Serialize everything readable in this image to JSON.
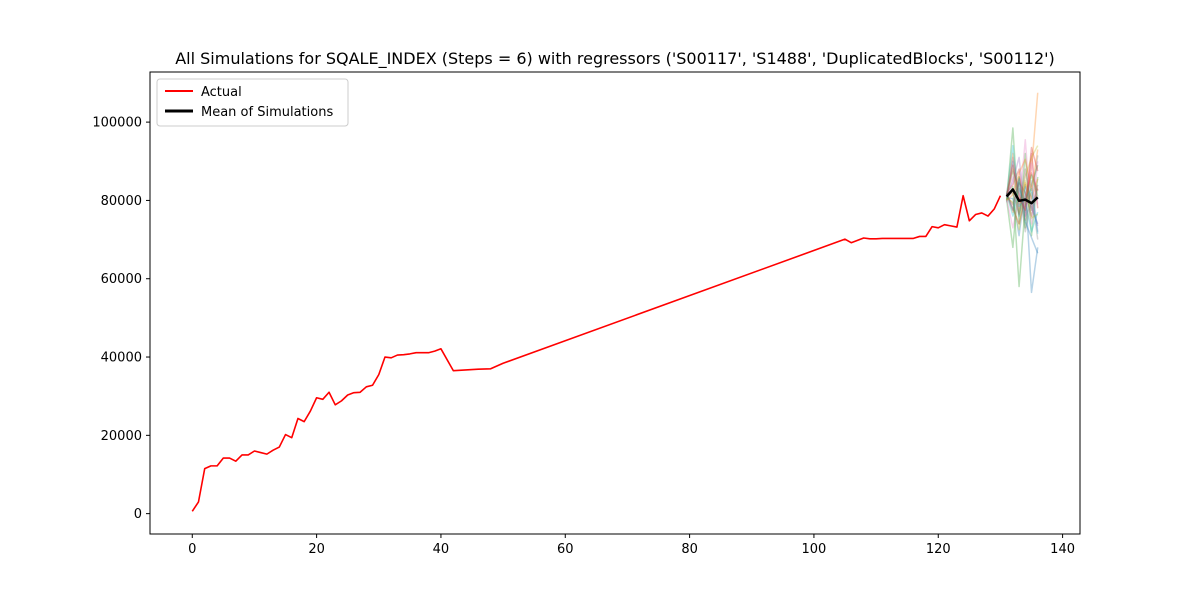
{
  "chart_data": {
    "type": "line",
    "title": "All Simulations for SQALE_INDEX (Steps = 6) with regressors ('S00117', 'S1488', 'DuplicatedBlocks', 'S00112')",
    "xlabel": "",
    "ylabel": "",
    "xlim": [
      -6.8,
      142.8
    ],
    "ylim": [
      -5200,
      112800
    ],
    "xticks": [
      0,
      20,
      40,
      60,
      80,
      100,
      120,
      140
    ],
    "yticks": [
      0,
      20000,
      40000,
      60000,
      80000,
      100000
    ],
    "legend_position": "top-left",
    "grid": false,
    "series": [
      {
        "name": "Actual",
        "color": "#ff0000",
        "x": [
          0,
          1,
          2,
          3,
          4,
          5,
          6,
          7,
          8,
          9,
          10,
          11,
          12,
          13,
          14,
          15,
          16,
          17,
          18,
          19,
          20,
          21,
          22,
          23,
          24,
          25,
          26,
          27,
          28,
          29,
          30,
          31,
          32,
          33,
          34,
          35,
          36,
          37,
          38,
          39,
          40,
          42,
          44,
          46,
          48,
          50,
          105,
          106,
          107,
          108,
          109,
          110,
          111,
          112,
          113,
          114,
          115,
          116,
          117,
          118,
          119,
          120,
          121,
          122,
          123,
          124,
          125,
          126,
          127,
          128,
          129,
          130
        ],
        "y": [
          600,
          3000,
          11500,
          12200,
          12200,
          14200,
          14200,
          13400,
          15000,
          15000,
          16000,
          15600,
          15200,
          16200,
          17000,
          20200,
          19400,
          24300,
          23500,
          26200,
          29600,
          29200,
          31000,
          27800,
          28800,
          30300,
          30900,
          31000,
          32400,
          32800,
          35500,
          40000,
          39800,
          40500,
          40600,
          40800,
          41100,
          41100,
          41100,
          41500,
          42100,
          36500,
          36700,
          36900,
          37000,
          38400,
          70100,
          69200,
          69800,
          70400,
          70200,
          70200,
          70300,
          70300,
          70300,
          70300,
          70300,
          70300,
          70800,
          70800,
          73300,
          73000,
          73800,
          73500,
          73200,
          81200,
          74800,
          76400,
          76800,
          76000,
          77800,
          81200
        ]
      },
      {
        "name": "Mean of Simulations",
        "color": "#000000",
        "x": [
          131,
          132,
          133,
          134,
          135,
          136
        ],
        "y": [
          81000,
          82800,
          79900,
          80200,
          79300,
          80800
        ]
      }
    ],
    "simulations": [
      {
        "color": "#1f77b4",
        "x": [
          131,
          132,
          133,
          134,
          135,
          136
        ],
        "y": [
          80500,
          90000,
          76000,
          84000,
          78000,
          74000
        ]
      },
      {
        "color": "#ff7f0e",
        "x": [
          131,
          132,
          133,
          134,
          135,
          136
        ],
        "y": [
          81500,
          77000,
          86000,
          79000,
          88000,
          107500
        ]
      },
      {
        "color": "#2ca02c",
        "x": [
          131,
          132,
          133,
          134,
          135,
          136
        ],
        "y": [
          80000,
          98500,
          74000,
          92000,
          71000,
          86000
        ]
      },
      {
        "color": "#d62728",
        "x": [
          131,
          132,
          133,
          134,
          135,
          136
        ],
        "y": [
          82000,
          84000,
          88000,
          75000,
          92000,
          78000
        ]
      },
      {
        "color": "#9467bd",
        "x": [
          131,
          132,
          133,
          134,
          135,
          136
        ],
        "y": [
          79500,
          91000,
          82000,
          77000,
          85000,
          72000
        ]
      },
      {
        "color": "#8c564b",
        "x": [
          131,
          132,
          133,
          134,
          135,
          136
        ],
        "y": [
          81200,
          79000,
          84500,
          82000,
          76000,
          83000
        ]
      },
      {
        "color": "#e377c2",
        "x": [
          131,
          132,
          133,
          134,
          135,
          136
        ],
        "y": [
          80800,
          86000,
          78000,
          95500,
          74000,
          90000
        ]
      },
      {
        "color": "#7f7f7f",
        "x": [
          131,
          132,
          133,
          134,
          135,
          136
        ],
        "y": [
          81000,
          83000,
          80000,
          78500,
          82000,
          70000
        ]
      },
      {
        "color": "#bcbd22",
        "x": [
          131,
          132,
          133,
          134,
          135,
          136
        ],
        "y": [
          80300,
          88000,
          77000,
          86000,
          91000,
          94000
        ]
      },
      {
        "color": "#17becf",
        "x": [
          131,
          132,
          133,
          134,
          135,
          136
        ],
        "y": [
          81700,
          76000,
          83000,
          79500,
          72000,
          77000
        ]
      },
      {
        "color": "#1f77b4",
        "x": [
          131,
          132,
          133,
          134,
          135,
          136
        ],
        "y": [
          80600,
          80500,
          71000,
          83500,
          56500,
          68000
        ]
      },
      {
        "color": "#ff7f0e",
        "x": [
          131,
          132,
          133,
          134,
          135,
          136
        ],
        "y": [
          81300,
          92000,
          79000,
          84500,
          80500,
          85500
        ]
      },
      {
        "color": "#2ca02c",
        "x": [
          131,
          132,
          133,
          134,
          135,
          136
        ],
        "y": [
          80200,
          68000,
          86000,
          73000,
          84000,
          89000
        ]
      },
      {
        "color": "#d62728",
        "x": [
          131,
          132,
          133,
          134,
          135,
          136
        ],
        "y": [
          81800,
          78000,
          74000,
          81000,
          87000,
          82500
        ]
      },
      {
        "color": "#9467bd",
        "x": [
          131,
          132,
          133,
          134,
          135,
          136
        ],
        "y": [
          80900,
          85000,
          91000,
          76000,
          79000,
          73500
        ]
      },
      {
        "color": "#8c564b",
        "x": [
          131,
          132,
          133,
          134,
          135,
          136
        ],
        "y": [
          81100,
          82000,
          76500,
          88000,
          77500,
          84000
        ]
      },
      {
        "color": "#e377c2",
        "x": [
          131,
          132,
          133,
          134,
          135,
          136
        ],
        "y": [
          80400,
          73000,
          80500,
          78000,
          89500,
          79000
        ]
      },
      {
        "color": "#7f7f7f",
        "x": [
          131,
          132,
          133,
          134,
          135,
          136
        ],
        "y": [
          81600,
          87500,
          83500,
          72000,
          80000,
          91500
        ]
      },
      {
        "color": "#bcbd22",
        "x": [
          131,
          132,
          133,
          134,
          135,
          136
        ],
        "y": [
          80700,
          79500,
          72500,
          85000,
          75500,
          76500
        ]
      },
      {
        "color": "#17becf",
        "x": [
          131,
          132,
          133,
          134,
          135,
          136
        ],
        "y": [
          81400,
          94000,
          78500,
          80500,
          83000,
          71500
        ]
      },
      {
        "color": "#2ca02c",
        "x": [
          131,
          132,
          133,
          134,
          135,
          136
        ],
        "y": [
          80100,
          83500,
          58000,
          79000,
          86500,
          81000
        ]
      },
      {
        "color": "#1f77b4",
        "x": [
          131,
          132,
          133,
          134,
          135,
          136
        ],
        "y": [
          81900,
          77500,
          85500,
          74500,
          70500,
          66500
        ]
      },
      {
        "color": "#ff7f0e",
        "x": [
          131,
          132,
          133,
          134,
          135,
          136
        ],
        "y": [
          80000,
          81500,
          87000,
          90500,
          82500,
          93000
        ]
      },
      {
        "color": "#d62728",
        "x": [
          131,
          132,
          133,
          134,
          135,
          136
        ],
        "y": [
          81200,
          89000,
          81000,
          77500,
          93500,
          87500
        ]
      }
    ]
  }
}
